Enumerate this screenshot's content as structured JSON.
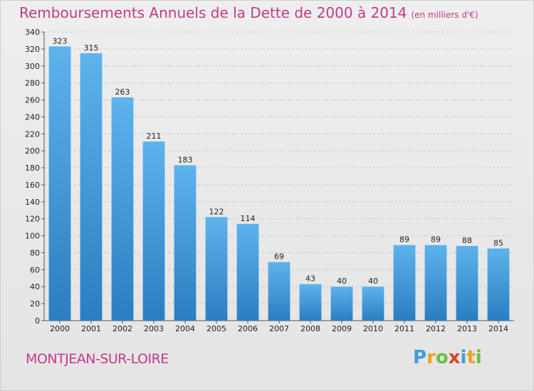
{
  "header": {
    "title": "Remboursements Annuels de la Dette de 2000 à 2014",
    "unit": "(en milliers d'€)"
  },
  "footer": {
    "town": "MONTJEAN-SUR-LOIRE",
    "logo_letters": [
      "P",
      "r",
      "o",
      "x",
      "i",
      "t",
      "i"
    ],
    "logo_colors": [
      "#3aa0d8",
      "#f0a020",
      "#6cbf3c",
      "#e0402a",
      "#3aa0d8",
      "#f0a020",
      "#6cbf3c"
    ]
  },
  "colors": {
    "title": "#c23a8a",
    "bar_top": "#5db3ec",
    "bar_bottom": "#2a7ec1"
  },
  "chart_data": {
    "type": "bar",
    "title": "Remboursements Annuels de la Dette de 2000 à 2014",
    "xlabel": "",
    "ylabel": "",
    "categories": [
      "2000",
      "2001",
      "2002",
      "2003",
      "2004",
      "2005",
      "2006",
      "2007",
      "2008",
      "2009",
      "2010",
      "2011",
      "2012",
      "2013",
      "2014"
    ],
    "values": [
      323,
      315,
      263,
      211,
      183,
      122,
      114,
      69,
      43,
      40,
      40,
      89,
      89,
      88,
      85
    ],
    "ylim": [
      0,
      340
    ],
    "yticks": [
      0,
      20,
      40,
      60,
      80,
      100,
      120,
      140,
      160,
      180,
      200,
      220,
      240,
      260,
      280,
      300,
      320,
      340
    ],
    "grid": true
  }
}
